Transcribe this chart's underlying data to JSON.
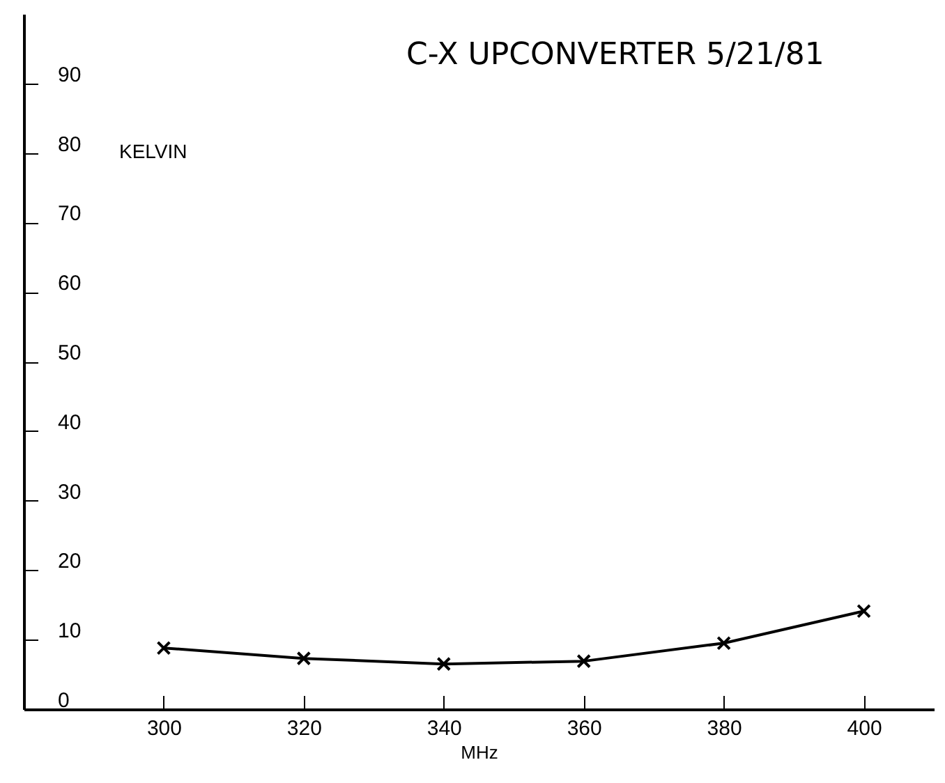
{
  "chart_data": {
    "type": "line",
    "title": "C-X UPCONVERTER 5/21/81",
    "xlabel": "MHz",
    "ylabel": "KELVIN",
    "x": [
      300,
      320,
      340,
      360,
      380,
      400
    ],
    "series": [
      {
        "color": "#000000",
        "values": [
          8.8,
          7.3,
          6.5,
          6.9,
          9.5,
          14.1
        ]
      }
    ],
    "xlim": [
      280,
      410
    ],
    "xticks": [
      300,
      320,
      340,
      360,
      380,
      400
    ],
    "ylim": [
      0,
      100
    ],
    "yticks": [
      0,
      10,
      20,
      30,
      40,
      50,
      60,
      70,
      80,
      90
    ],
    "marker": "cross",
    "line_style": "solid",
    "grid": false,
    "legend": false
  }
}
